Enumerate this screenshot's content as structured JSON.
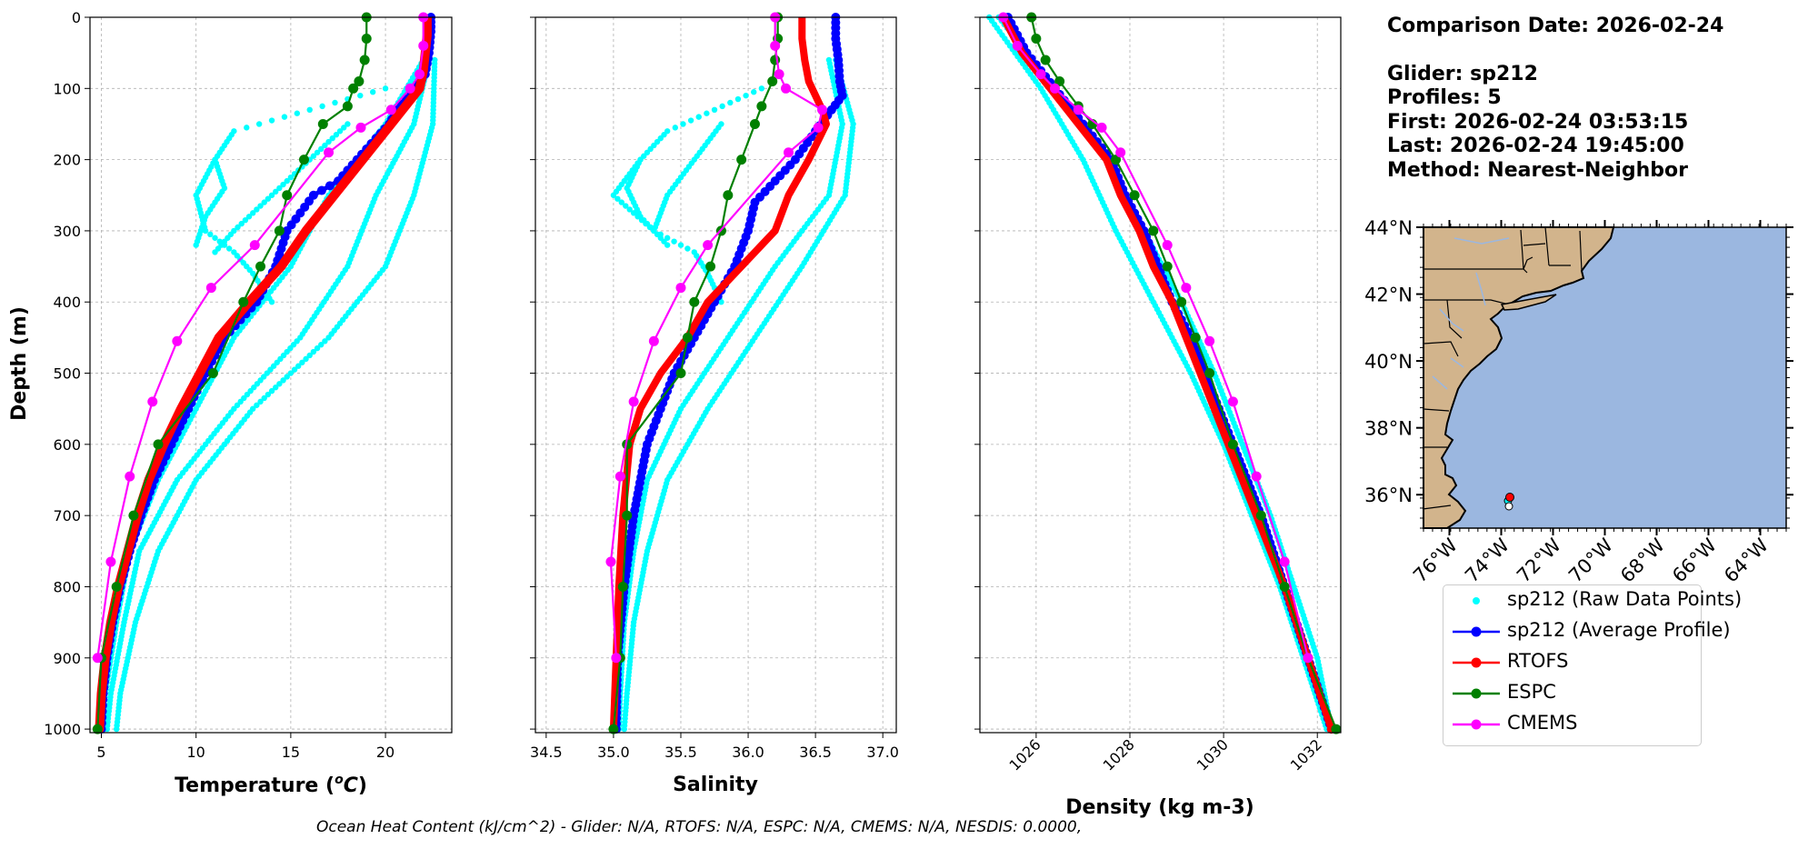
{
  "colors": {
    "raw": "#00ffff",
    "avg": "#0000ff",
    "rtofs": "#ff0000",
    "espc": "#008000",
    "cmems": "#ff00ff",
    "land": "#d2b48c",
    "ocean": "#9bb7e0",
    "grid": "#b0b0b0"
  },
  "info": {
    "comparison_date": "Comparison Date: 2026-02-24",
    "glider": "Glider: sp212",
    "profiles": "Profiles: 5",
    "first": "First: 2026-02-24 03:53:15",
    "last": "Last: 2026-02-24 19:45:00",
    "method": "Method: Nearest-Neighbor"
  },
  "legend": {
    "raw": "sp212 (Raw Data Points)",
    "avg": "sp212 (Average Profile)",
    "rtofs": "RTOFS",
    "espc": "ESPC",
    "cmems": "CMEMS"
  },
  "footer": "Ocean Heat Content (kJ/cm^2) - Glider: N/A,  RTOFS: N/A,  ESPC: N/A,  CMEMS: N/A,  NESDIS: 0.0000,",
  "map": {
    "lat_ticks": [
      "44°N",
      "42°N",
      "40°N",
      "38°N",
      "36°N"
    ],
    "lon_ticks": [
      "76°W",
      "74°W",
      "72°W",
      "70°W",
      "68°W",
      "66°W",
      "64°W"
    ],
    "extent": {
      "lon": [
        -77,
        -63
      ],
      "lat": [
        35,
        44
      ]
    },
    "glider_position": {
      "lon": -74.5,
      "lat": 35.8
    }
  },
  "chart_data": [
    {
      "type": "line",
      "title": "",
      "xlabel": "Temperature (°C)",
      "ylabel": "Depth (m)",
      "xlim": [
        4.4,
        23.5
      ],
      "ylim": [
        1005,
        0
      ],
      "xticks": [
        5,
        10,
        15,
        20
      ],
      "yticks": [
        0,
        100,
        200,
        300,
        400,
        500,
        600,
        700,
        800,
        900,
        1000
      ],
      "grid": true,
      "raw_profiles": [
        {
          "depth": [
            60,
            150,
            250,
            350,
            450,
            550,
            650,
            750,
            850,
            950,
            1000
          ],
          "values": [
            22.6,
            22.5,
            21.5,
            20,
            17,
            13,
            10,
            8,
            6.8,
            6,
            5.8
          ]
        },
        {
          "depth": [
            60,
            150,
            250,
            350,
            450,
            550,
            650,
            750,
            850,
            950,
            1000
          ],
          "values": [
            22.3,
            21.5,
            19.5,
            18,
            15.5,
            12,
            9,
            7,
            6.2,
            5.5,
            5.3
          ]
        },
        {
          "depth": [
            60,
            150,
            250,
            350,
            450,
            550,
            650,
            750,
            850,
            950,
            1000
          ],
          "values": [
            22,
            20,
            17,
            15,
            12,
            10,
            8,
            6.5,
            5.8,
            5.2,
            5
          ]
        },
        {
          "depth": [
            100,
            160,
            200,
            250,
            300,
            330,
            360,
            400
          ],
          "values": [
            20,
            12,
            11,
            10,
            10.5,
            12,
            13,
            14
          ]
        },
        {
          "depth": [
            150,
            200,
            250,
            300,
            330
          ],
          "values": [
            18,
            16,
            14,
            12,
            11
          ]
        },
        {
          "depth": [
            200,
            240,
            280,
            320
          ],
          "values": [
            11,
            11.5,
            10.5,
            10
          ]
        }
      ],
      "series": [
        {
          "name": "sp212 (Average Profile)",
          "depth": [
            0,
            20,
            50,
            80,
            100,
            130,
            150,
            170,
            200,
            230,
            250,
            300,
            350,
            400,
            450,
            500,
            550,
            600,
            650,
            700,
            750,
            800,
            850,
            900,
            950,
            1000
          ],
          "values": [
            22.4,
            22.4,
            22.3,
            22.1,
            21.6,
            20.6,
            20.2,
            19.5,
            18.5,
            17.5,
            16.2,
            14.8,
            14.2,
            13.2,
            11.5,
            10.5,
            9.6,
            8.7,
            7.8,
            7.1,
            6.5,
            6,
            5.6,
            5.3,
            5.1,
            5.0
          ],
          "width": 6,
          "markers": true
        },
        {
          "name": "RTOFS",
          "depth": [
            0,
            25,
            50,
            75,
            100,
            150,
            200,
            250,
            300,
            350,
            400,
            450,
            500,
            550,
            600,
            650,
            700,
            750,
            800,
            850,
            900,
            950,
            1000
          ],
          "values": [
            22.2,
            22.2,
            22.1,
            22,
            21.8,
            20.3,
            18.8,
            17.3,
            15.8,
            14.5,
            12.8,
            11.2,
            10.2,
            9.2,
            8.3,
            7.5,
            6.9,
            6.4,
            5.9,
            5.5,
            5.2,
            5.0,
            4.9
          ],
          "width": 10,
          "markers": false
        },
        {
          "name": "ESPC",
          "depth": [
            0,
            30,
            60,
            90,
            100,
            125,
            150,
            200,
            250,
            300,
            350,
            400,
            500,
            600,
            700,
            800,
            900,
            1000
          ],
          "values": [
            19.0,
            19.0,
            18.9,
            18.6,
            18.3,
            18.0,
            16.7,
            15.7,
            14.8,
            14.4,
            13.4,
            12.5,
            10.9,
            8.0,
            6.7,
            5.8,
            5.0,
            4.8
          ],
          "width": 2.5,
          "markers": true
        },
        {
          "name": "CMEMS",
          "depth": [
            0,
            40,
            80,
            100,
            130,
            155,
            190,
            320,
            380,
            455,
            540,
            645,
            765,
            900
          ],
          "values": [
            22.0,
            22.0,
            21.8,
            21.3,
            20.3,
            18.7,
            17.0,
            13.1,
            10.8,
            9.0,
            7.7,
            6.5,
            5.5,
            4.8
          ],
          "width": 2.5,
          "markers": true
        }
      ]
    },
    {
      "type": "line",
      "xlabel": "Salinity",
      "xlim": [
        34.42,
        37.1
      ],
      "ylim": [
        1005,
        0
      ],
      "xticks": [
        34.5,
        35.0,
        35.5,
        36.0,
        36.5,
        37.0
      ],
      "grid": true,
      "raw_profiles": [
        {
          "depth": [
            60,
            150,
            250,
            350,
            450,
            550,
            650,
            750,
            850,
            950,
            1000
          ],
          "values": [
            36.65,
            36.78,
            36.72,
            36.4,
            36.05,
            35.7,
            35.4,
            35.25,
            35.15,
            35.1,
            35.08
          ]
        },
        {
          "depth": [
            60,
            150,
            250,
            350,
            450,
            550,
            650,
            750,
            850,
            950,
            1000
          ],
          "values": [
            36.6,
            36.7,
            36.6,
            36.2,
            35.85,
            35.5,
            35.25,
            35.15,
            35.08,
            35.05,
            35.04
          ]
        },
        {
          "depth": [
            100,
            160,
            200,
            250,
            300,
            330,
            360,
            400
          ],
          "values": [
            36.1,
            35.4,
            35.2,
            35.0,
            35.3,
            35.6,
            35.7,
            35.8
          ]
        },
        {
          "depth": [
            200,
            240,
            280,
            320
          ],
          "values": [
            35.2,
            35.1,
            35.2,
            35.4
          ]
        },
        {
          "depth": [
            150,
            200,
            250,
            300
          ],
          "values": [
            35.8,
            35.6,
            35.4,
            35.3
          ]
        }
      ],
      "series": [
        {
          "name": "sp212 (Average Profile)",
          "depth": [
            0,
            30,
            60,
            90,
            110,
            130,
            160,
            200,
            230,
            260,
            300,
            350,
            400,
            450,
            500,
            550,
            600,
            700,
            800,
            900,
            1000
          ],
          "values": [
            36.65,
            36.65,
            36.67,
            36.68,
            36.7,
            36.62,
            36.5,
            36.35,
            36.2,
            36.05,
            36.0,
            35.9,
            35.75,
            35.6,
            35.45,
            35.35,
            35.25,
            35.15,
            35.08,
            35.03,
            35.02
          ]
        },
        {
          "name": "RTOFS",
          "depth": [
            0,
            30,
            60,
            90,
            110,
            130,
            150,
            200,
            250,
            300,
            350,
            400,
            450,
            500,
            550,
            600,
            700,
            800,
            900,
            1000
          ],
          "values": [
            36.4,
            36.4,
            36.42,
            36.45,
            36.5,
            36.55,
            36.58,
            36.45,
            36.3,
            36.2,
            35.95,
            35.7,
            35.55,
            35.35,
            35.2,
            35.12,
            35.07,
            35.04,
            35.02,
            35.0
          ]
        },
        {
          "name": "ESPC",
          "depth": [
            0,
            30,
            60,
            90,
            125,
            150,
            200,
            250,
            300,
            350,
            400,
            450,
            500,
            600,
            700,
            800,
            900,
            1000
          ],
          "values": [
            36.22,
            36.22,
            36.2,
            36.18,
            36.1,
            36.05,
            35.95,
            35.85,
            35.8,
            35.72,
            35.6,
            35.55,
            35.5,
            35.1,
            35.1,
            35.07,
            35.05,
            35.0
          ]
        },
        {
          "name": "CMEMS",
          "depth": [
            0,
            40,
            80,
            100,
            130,
            155,
            190,
            320,
            380,
            455,
            540,
            645,
            765,
            900
          ],
          "values": [
            36.2,
            36.2,
            36.23,
            36.28,
            36.55,
            36.52,
            36.3,
            35.7,
            35.5,
            35.3,
            35.15,
            35.05,
            34.98,
            35.02
          ]
        }
      ]
    },
    {
      "type": "line",
      "xlabel": "Density (kg m-3)",
      "xlim": [
        1024.8,
        1032.5
      ],
      "ylim": [
        1005,
        0
      ],
      "xticks": [
        1026,
        1028,
        1030,
        1032
      ],
      "grid": true,
      "raw_profiles": [
        {
          "depth": [
            0,
            100,
            200,
            300,
            400,
            500,
            600,
            700,
            800,
            900,
            1000
          ],
          "values": [
            1025.0,
            1026.1,
            1027.0,
            1027.7,
            1028.5,
            1029.3,
            1030.0,
            1030.6,
            1031.2,
            1031.7,
            1032.2
          ]
        },
        {
          "depth": [
            0,
            100,
            200,
            300,
            400,
            500,
            600,
            700,
            800,
            900,
            1000
          ],
          "values": [
            1025.2,
            1026.4,
            1027.5,
            1028.3,
            1029.1,
            1029.8,
            1030.4,
            1031.0,
            1031.5,
            1032.0,
            1032.3
          ]
        }
      ],
      "series": [
        {
          "name": "sp212 (Average Profile)",
          "depth": [
            0,
            50,
            100,
            150,
            200,
            250,
            300,
            350,
            400,
            450,
            500,
            550,
            600,
            700,
            800,
            900,
            1000
          ],
          "values": [
            1025.4,
            1025.8,
            1026.4,
            1027.0,
            1027.6,
            1027.9,
            1028.3,
            1028.6,
            1028.9,
            1029.3,
            1029.6,
            1029.9,
            1030.2,
            1030.8,
            1031.3,
            1031.8,
            1032.3
          ]
        },
        {
          "name": "RTOFS",
          "depth": [
            0,
            50,
            100,
            150,
            200,
            250,
            300,
            350,
            400,
            450,
            500,
            550,
            600,
            700,
            800,
            900,
            1000
          ],
          "values": [
            1025.3,
            1025.7,
            1026.3,
            1026.9,
            1027.5,
            1027.8,
            1028.2,
            1028.5,
            1028.9,
            1029.2,
            1029.5,
            1029.8,
            1030.1,
            1030.7,
            1031.3,
            1031.8,
            1032.3
          ]
        },
        {
          "name": "ESPC",
          "depth": [
            0,
            30,
            60,
            90,
            125,
            150,
            200,
            250,
            300,
            350,
            400,
            450,
            500,
            600,
            700,
            800,
            900,
            1000
          ],
          "values": [
            1025.9,
            1026.0,
            1026.2,
            1026.5,
            1026.9,
            1027.2,
            1027.7,
            1028.1,
            1028.5,
            1028.8,
            1029.1,
            1029.4,
            1029.7,
            1030.2,
            1030.8,
            1031.3,
            1031.8,
            1032.4
          ]
        },
        {
          "name": "CMEMS",
          "depth": [
            0,
            40,
            80,
            100,
            130,
            155,
            190,
            320,
            380,
            455,
            540,
            645,
            765,
            900
          ],
          "values": [
            1025.3,
            1025.6,
            1026.1,
            1026.4,
            1026.9,
            1027.4,
            1027.8,
            1028.8,
            1029.2,
            1029.7,
            1030.2,
            1030.7,
            1031.3,
            1031.8
          ]
        }
      ]
    }
  ]
}
